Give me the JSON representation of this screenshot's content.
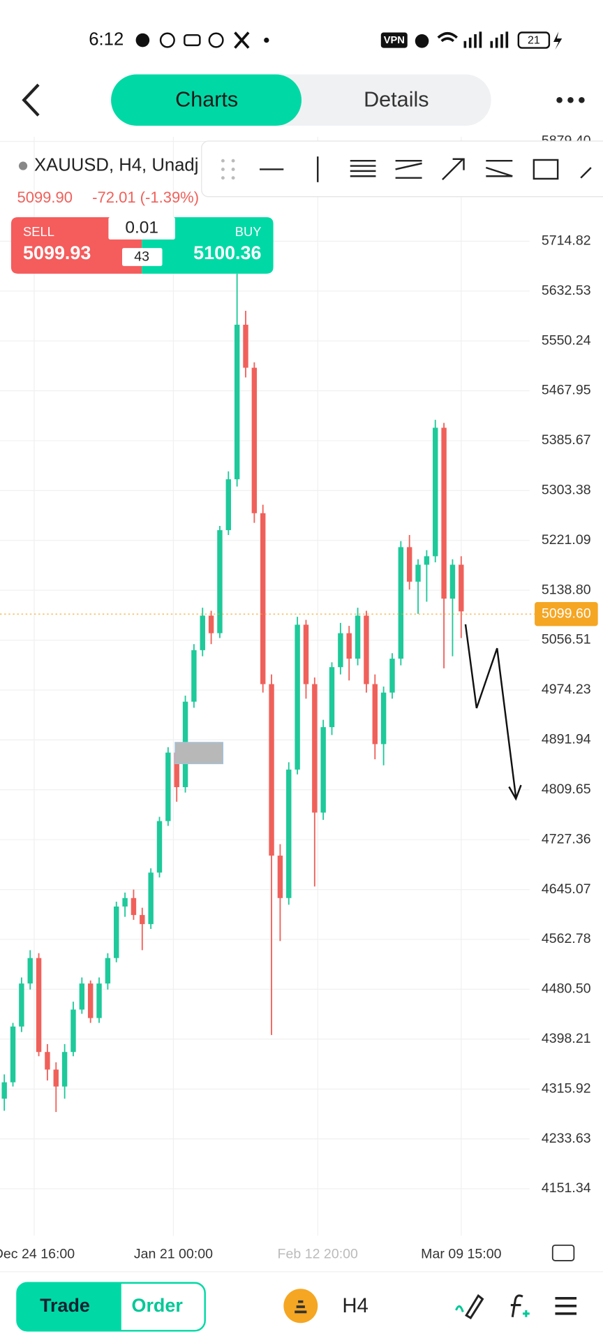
{
  "status_bar": {
    "time": "6:12",
    "vpn": "VPN",
    "battery": "21"
  },
  "tabs": [
    "Charts",
    "Details"
  ],
  "symbol": "XAUUSD, H4, Unadj",
  "quote": {
    "price": "5099.90",
    "change": "-72.01 (-1.39%)"
  },
  "trade_panel": {
    "sell_label": "SELL",
    "sell_price": "5099.93",
    "volume": "0.01",
    "spread": "43",
    "buy_label": "BUY",
    "buy_price": "5100.36"
  },
  "chart_data": {
    "type": "candlestick",
    "ylim": [
      4073.7,
      5887.0
    ],
    "yticks": [
      {
        "value": 5879.4,
        "label": "5879.40"
      },
      {
        "value": 5714.82,
        "label": "5714.82"
      },
      {
        "value": 5632.53,
        "label": "5632.53"
      },
      {
        "value": 5550.24,
        "label": "5550.24"
      },
      {
        "value": 5467.95,
        "label": "5467.95"
      },
      {
        "value": 5385.67,
        "label": "5385.67"
      },
      {
        "value": 5303.38,
        "label": "5303.38"
      },
      {
        "value": 5221.09,
        "label": "5221.09"
      },
      {
        "value": 5138.8,
        "label": "5138.80"
      },
      {
        "value": 5056.51,
        "label": "5056.51"
      },
      {
        "value": 4974.23,
        "label": "4974.23"
      },
      {
        "value": 4891.94,
        "label": "4891.94"
      },
      {
        "value": 4809.65,
        "label": "4809.65"
      },
      {
        "value": 4727.36,
        "label": "4727.36"
      },
      {
        "value": 4645.07,
        "label": "4645.07"
      },
      {
        "value": 4562.78,
        "label": "4562.78"
      },
      {
        "value": 4480.5,
        "label": "4480.50"
      },
      {
        "value": 4398.21,
        "label": "4398.21"
      },
      {
        "value": 4315.92,
        "label": "4315.92"
      },
      {
        "value": 4233.63,
        "label": "4233.63"
      },
      {
        "value": 4151.34,
        "label": "4151.34"
      }
    ],
    "x_labels": [
      "Dec 24 16:00",
      "Jan 21 00:00",
      "Feb 12 20:00",
      "Mar 09 15:00"
    ],
    "current_price": {
      "value": 5099.6,
      "label": "5099.60"
    },
    "up_color": "#1ec99a",
    "down_color": "#f0605a",
    "candles": [
      [
        4300,
        4340,
        4280,
        4327
      ],
      [
        4327,
        4425,
        4320,
        4419
      ],
      [
        4419,
        4500,
        4410,
        4490
      ],
      [
        4490,
        4545,
        4480,
        4532
      ],
      [
        4532,
        4540,
        4370,
        4377
      ],
      [
        4377,
        4390,
        4330,
        4348
      ],
      [
        4348,
        4360,
        4278,
        4320
      ],
      [
        4320,
        4390,
        4300,
        4377
      ],
      [
        4377,
        4460,
        4370,
        4447
      ],
      [
        4447,
        4500,
        4440,
        4490
      ],
      [
        4490,
        4495,
        4425,
        4433
      ],
      [
        4433,
        4500,
        4425,
        4490
      ],
      [
        4490,
        4540,
        4480,
        4532
      ],
      [
        4532,
        4625,
        4525,
        4617
      ],
      [
        4617,
        4640,
        4600,
        4631
      ],
      [
        4631,
        4645,
        4595,
        4603
      ],
      [
        4603,
        4615,
        4545,
        4588
      ],
      [
        4588,
        4680,
        4580,
        4673
      ],
      [
        4673,
        4765,
        4665,
        4758
      ],
      [
        4758,
        4880,
        4750,
        4871
      ],
      [
        4871,
        4885,
        4790,
        4814
      ],
      [
        4814,
        4965,
        4805,
        4955
      ],
      [
        4955,
        5050,
        4945,
        5040
      ],
      [
        5040,
        5110,
        5030,
        5097
      ],
      [
        5097,
        5105,
        5050,
        5068
      ],
      [
        5068,
        5245,
        5060,
        5238
      ],
      [
        5238,
        5335,
        5230,
        5322
      ],
      [
        5322,
        5661,
        5310,
        5577
      ],
      [
        5577,
        5600,
        5490,
        5506
      ],
      [
        5506,
        5515,
        5250,
        5266
      ],
      [
        5266,
        5280,
        4970,
        4984
      ],
      [
        4984,
        5000,
        4405,
        4701
      ],
      [
        4701,
        4720,
        4560,
        4631
      ],
      [
        4631,
        4855,
        4620,
        4843
      ],
      [
        4843,
        5095,
        4835,
        5082
      ],
      [
        5082,
        5090,
        4960,
        4984
      ],
      [
        4984,
        4995,
        4650,
        4772
      ],
      [
        4772,
        4925,
        4760,
        4913
      ],
      [
        4913,
        5020,
        4900,
        5012
      ],
      [
        5012,
        5085,
        5000,
        5068
      ],
      [
        5068,
        5080,
        4990,
        5026
      ],
      [
        5026,
        5110,
        5015,
        5097
      ],
      [
        5097,
        5105,
        4970,
        4984
      ],
      [
        4984,
        5000,
        4860,
        4885
      ],
      [
        4885,
        4980,
        4850,
        4970
      ],
      [
        4970,
        5035,
        4960,
        5026
      ],
      [
        5026,
        5220,
        5015,
        5210
      ],
      [
        5210,
        5230,
        5140,
        5153
      ],
      [
        5153,
        5190,
        5100,
        5181
      ],
      [
        5181,
        5205,
        5120,
        5195
      ],
      [
        5195,
        5420,
        5185,
        5407
      ],
      [
        5407,
        5415,
        5010,
        5125
      ],
      [
        5125,
        5190,
        5030,
        5181
      ],
      [
        5181,
        5195,
        5060,
        5104
      ]
    ]
  },
  "bottom_bar": {
    "trade": "Trade",
    "order": "Order",
    "timeframe": "H4"
  }
}
